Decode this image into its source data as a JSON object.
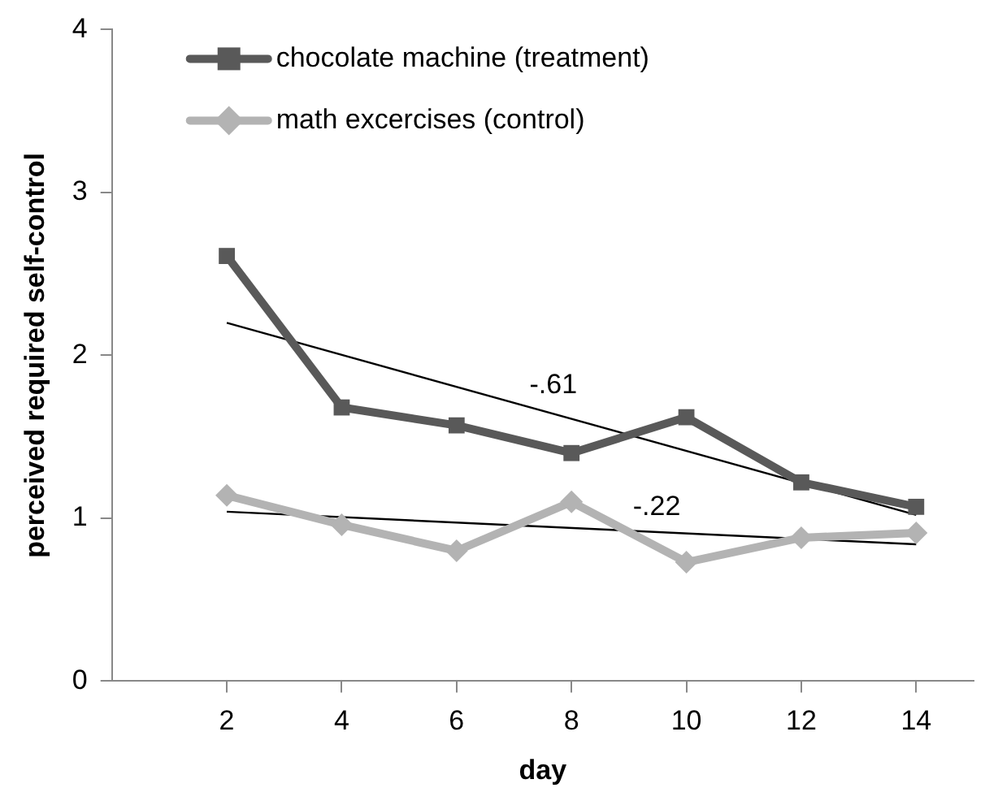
{
  "chart_data": {
    "type": "line",
    "xlabel": "day",
    "ylabel": "perceived required self-control",
    "xlim": [
      0,
      15
    ],
    "xticks": [
      2,
      4,
      6,
      8,
      10,
      12,
      14
    ],
    "ylim": [
      0,
      4
    ],
    "yticks": [
      0,
      1,
      2,
      3,
      4
    ],
    "grid": false,
    "legend": "top left",
    "line_style": "solid",
    "series": [
      {
        "name": "chocolate machine (treatment)",
        "color": "#595959",
        "marker": "square",
        "x": [
          2,
          4,
          6,
          8,
          10,
          12,
          14
        ],
        "values": [
          2.61,
          1.68,
          1.57,
          1.4,
          1.62,
          1.22,
          1.07
        ]
      },
      {
        "name": "math excercises (control)",
        "color": "#b3b3b3",
        "marker": "diamond",
        "x": [
          2,
          4,
          6,
          8,
          10,
          12,
          14
        ],
        "values": [
          1.14,
          0.96,
          0.8,
          1.1,
          0.73,
          0.88,
          0.91
        ]
      },
      {
        "color": "#000000",
        "marker": "none",
        "x": [
          2,
          14
        ],
        "values": [
          2.2,
          1.02
        ]
      },
      {
        "color": "#000000",
        "marker": "none",
        "x": [
          2,
          14
        ],
        "values": [
          1.04,
          0.84
        ]
      }
    ],
    "annotations": [
      "-.61",
      "-.22"
    ]
  }
}
